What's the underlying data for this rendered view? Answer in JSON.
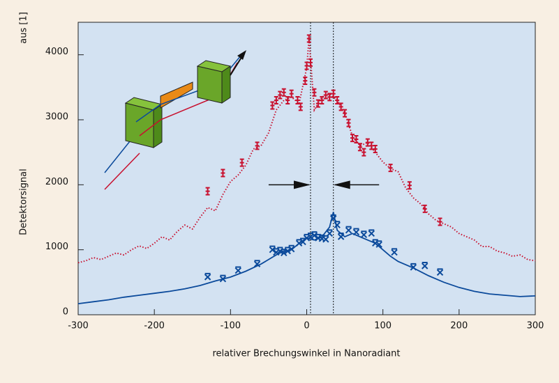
{
  "chart_data": {
    "type": "line",
    "corner_label": "aus [1]",
    "y_label": "Detektorsignal",
    "x_label": "relativer Brechungswinkel in Nanoradiant",
    "xlim": [
      -300,
      300
    ],
    "xticks": [
      -300,
      -200,
      -100,
      0,
      100,
      200,
      300
    ],
    "ylim": [
      0,
      4500
    ],
    "yticks": [
      0,
      1000,
      2000,
      3000,
      4000
    ],
    "vlines": [
      5,
      35
    ],
    "arrows": [
      {
        "from": [
          -50,
          2000
        ],
        "to": [
          5,
          2000
        ]
      },
      {
        "from": [
          95,
          2000
        ],
        "to": [
          35,
          2000
        ]
      }
    ],
    "series": [
      {
        "type": "line",
        "style": "dotted",
        "color": "#c8102e",
        "x": [
          -300,
          -290,
          -280,
          -270,
          -260,
          -250,
          -240,
          -230,
          -220,
          -210,
          -200,
          -190,
          -180,
          -170,
          -160,
          -150,
          -140,
          -130,
          -120,
          -110,
          -100,
          -90,
          -80,
          -70,
          -60,
          -50,
          -40,
          -30,
          -20,
          -10,
          0,
          3,
          10,
          20,
          30,
          40,
          50,
          60,
          70,
          80,
          90,
          100,
          110,
          120,
          130,
          140,
          150,
          160,
          170,
          180,
          190,
          200,
          210,
          220,
          230,
          240,
          250,
          260,
          270,
          280,
          290,
          300
        ],
        "values": [
          800,
          830,
          880,
          850,
          900,
          950,
          920,
          1000,
          1060,
          1020,
          1100,
          1200,
          1150,
          1280,
          1380,
          1320,
          1500,
          1650,
          1600,
          1850,
          2050,
          2150,
          2300,
          2550,
          2600,
          2800,
          3150,
          3300,
          3350,
          3250,
          3800,
          4250,
          3150,
          3350,
          3400,
          3300,
          3100,
          2750,
          2600,
          2650,
          2500,
          2350,
          2250,
          2200,
          1950,
          1800,
          1700,
          1550,
          1450,
          1400,
          1350,
          1250,
          1200,
          1150,
          1050,
          1050,
          980,
          950,
          900,
          920,
          850,
          830
        ]
      },
      {
        "type": "line",
        "style": "solid",
        "color": "#0b4a9b",
        "x": [
          -300,
          -280,
          -260,
          -240,
          -220,
          -200,
          -180,
          -160,
          -140,
          -120,
          -100,
          -80,
          -60,
          -40,
          -30,
          -20,
          -10,
          0,
          10,
          20,
          30,
          35,
          40,
          50,
          60,
          70,
          80,
          90,
          100,
          110,
          120,
          140,
          160,
          180,
          200,
          220,
          240,
          260,
          280,
          300
        ],
        "values": [
          170,
          200,
          230,
          270,
          300,
          330,
          360,
          400,
          450,
          520,
          580,
          670,
          780,
          920,
          980,
          1000,
          1100,
          1180,
          1150,
          1200,
          1350,
          1580,
          1300,
          1200,
          1250,
          1200,
          1150,
          1100,
          1000,
          900,
          820,
          720,
          600,
          500,
          420,
          360,
          320,
          300,
          280,
          290
        ]
      },
      {
        "type": "scatter",
        "marker": "ibeam",
        "color": "#c8102e",
        "x": [
          -130,
          -110,
          -85,
          -65,
          -45,
          -40,
          -35,
          -30,
          -25,
          -20,
          -12,
          -8,
          -2,
          0,
          3,
          5,
          10,
          15,
          20,
          25,
          30,
          35,
          40,
          45,
          50,
          55,
          60,
          65,
          70,
          75,
          80,
          85,
          90,
          110,
          135,
          155,
          175
        ],
        "values": [
          1900,
          2180,
          2340,
          2600,
          3220,
          3300,
          3380,
          3420,
          3300,
          3400,
          3300,
          3200,
          3600,
          3830,
          4250,
          3880,
          3420,
          3250,
          3300,
          3380,
          3350,
          3400,
          3300,
          3200,
          3100,
          2950,
          2720,
          2700,
          2580,
          2500,
          2650,
          2600,
          2550,
          2260,
          1990,
          1630,
          1430
        ]
      },
      {
        "type": "scatter",
        "marker": "cross",
        "color": "#0b4a9b",
        "x": [
          -130,
          -110,
          -90,
          -65,
          -45,
          -40,
          -35,
          -30,
          -25,
          -20,
          -10,
          -5,
          0,
          5,
          10,
          15,
          20,
          25,
          30,
          35,
          40,
          45,
          55,
          65,
          75,
          85,
          90,
          95,
          115,
          140,
          155,
          175
        ],
        "values": [
          580,
          550,
          680,
          780,
          1000,
          960,
          980,
          950,
          980,
          1010,
          1100,
          1120,
          1180,
          1200,
          1220,
          1180,
          1170,
          1160,
          1250,
          1480,
          1380,
          1200,
          1300,
          1270,
          1230,
          1250,
          1100,
          1080,
          960,
          730,
          750,
          650
        ]
      }
    ]
  }
}
